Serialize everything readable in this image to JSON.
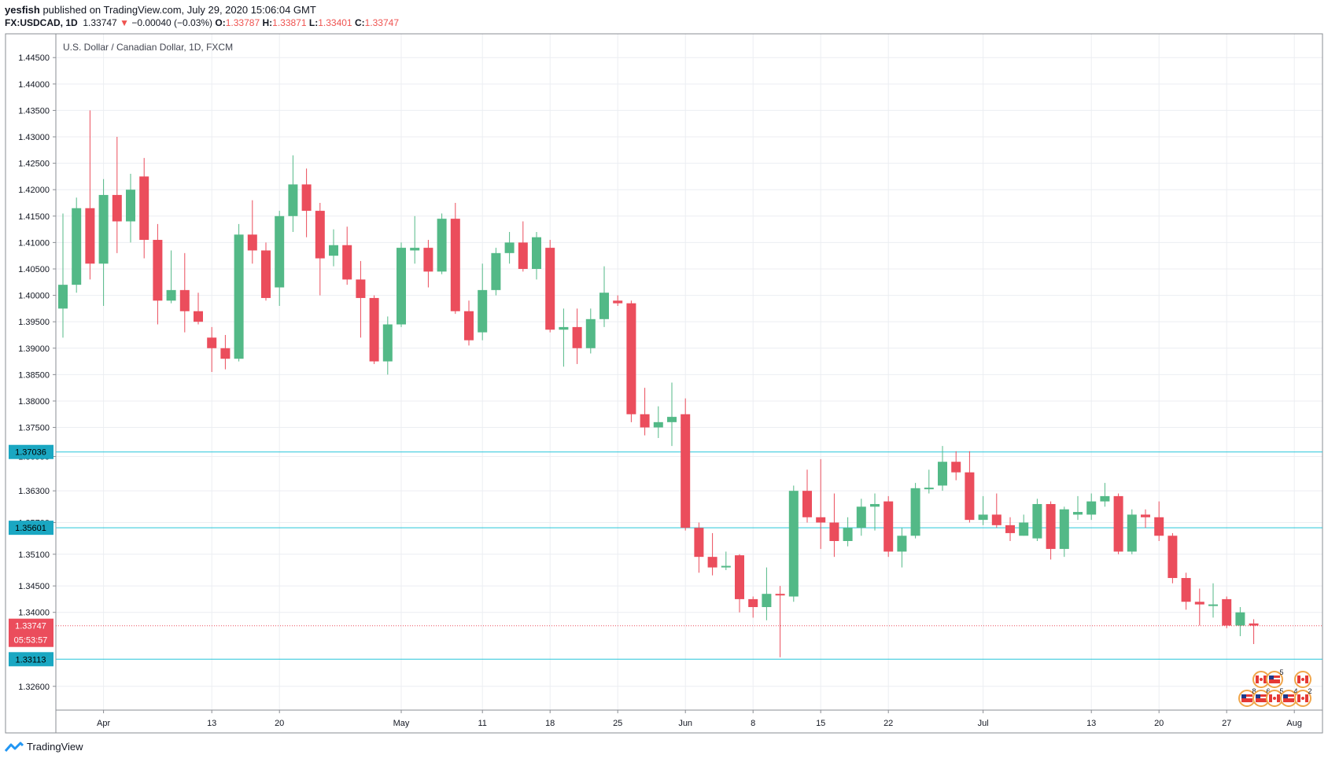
{
  "header": {
    "publisher": "yesfish",
    "published_text": "published on TradingView.com, July 29, 2020 15:06:04 GMT",
    "symbol": "FX:USDCAD, 1D",
    "last": "1.33747",
    "change": "−0.00040 (−0.03%)",
    "o_label": "O:",
    "o_val": "1.33787",
    "h_label": "H:",
    "h_val": "1.33871",
    "l_label": "L:",
    "l_val": "1.33401",
    "c_label": "C:",
    "c_val": "1.33747"
  },
  "footer": {
    "brand": "TradingView"
  },
  "colors": {
    "up": "#53b987",
    "down": "#eb4d5c",
    "level": "#26c6da",
    "grid": "#eceef2",
    "axis": "#131722"
  },
  "chart_data": {
    "type": "candlestick",
    "title": "U.S. Dollar / Canadian Dollar, 1D, FXCM",
    "ylim": [
      1.3215,
      1.4495
    ],
    "y_ticks": [
      {
        "v": 1.445,
        "label": "1.44500"
      },
      {
        "v": 1.44,
        "label": "1.44000"
      },
      {
        "v": 1.435,
        "label": "1.43500"
      },
      {
        "v": 1.43,
        "label": "1.43000"
      },
      {
        "v": 1.425,
        "label": "1.42500"
      },
      {
        "v": 1.42,
        "label": "1.42000"
      },
      {
        "v": 1.415,
        "label": "1.41500"
      },
      {
        "v": 1.41,
        "label": "1.41000"
      },
      {
        "v": 1.405,
        "label": "1.40500"
      },
      {
        "v": 1.4,
        "label": "1.40000"
      },
      {
        "v": 1.395,
        "label": "1.39500"
      },
      {
        "v": 1.39,
        "label": "1.39000"
      },
      {
        "v": 1.385,
        "label": "1.38500"
      },
      {
        "v": 1.38,
        "label": "1.38000"
      },
      {
        "v": 1.375,
        "label": "1.37500"
      },
      {
        "v": 1.3695,
        "label": "1.36950"
      },
      {
        "v": 1.363,
        "label": "1.36300"
      },
      {
        "v": 1.357,
        "label": "1.35700"
      },
      {
        "v": 1.351,
        "label": "1.35100"
      },
      {
        "v": 1.345,
        "label": "1.34500"
      },
      {
        "v": 1.34,
        "label": "1.34000"
      },
      {
        "v": 1.326,
        "label": "1.32600"
      }
    ],
    "x_ticks": [
      {
        "i": 3,
        "label": "Apr"
      },
      {
        "i": 11,
        "label": "13"
      },
      {
        "i": 16,
        "label": "20"
      },
      {
        "i": 25,
        "label": "May"
      },
      {
        "i": 31,
        "label": "11"
      },
      {
        "i": 36,
        "label": "18"
      },
      {
        "i": 41,
        "label": "25"
      },
      {
        "i": 46,
        "label": "Jun"
      },
      {
        "i": 51,
        "label": "8"
      },
      {
        "i": 56,
        "label": "15"
      },
      {
        "i": 61,
        "label": "22"
      },
      {
        "i": 68,
        "label": "Jul"
      },
      {
        "i": 76,
        "label": "13"
      },
      {
        "i": 81,
        "label": "20"
      },
      {
        "i": 86,
        "label": "27"
      },
      {
        "i": 91,
        "label": "Aug"
      }
    ],
    "levels": [
      {
        "value": 1.37036,
        "label": "1.37036"
      },
      {
        "value": 1.35601,
        "label": "1.35601"
      },
      {
        "value": 1.33113,
        "label": "1.33113"
      }
    ],
    "last_price": {
      "value": 1.33747,
      "label": "1.33747",
      "countdown": "05:53:57"
    },
    "events": {
      "row1": [
        "",
        "5",
        ""
      ],
      "row2": [
        "8",
        "6",
        "5",
        "4",
        "2"
      ]
    },
    "candles": [
      [
        1.3975,
        1.402,
        1.4155,
        1.392
      ],
      [
        1.402,
        1.4165,
        1.4185,
        1.4005
      ],
      [
        1.4165,
        1.406,
        1.435,
        1.403
      ],
      [
        1.406,
        1.419,
        1.422,
        1.398
      ],
      [
        1.419,
        1.414,
        1.43,
        1.408
      ],
      [
        1.414,
        1.42,
        1.423,
        1.41
      ],
      [
        1.4225,
        1.4105,
        1.426,
        1.407
      ],
      [
        1.4105,
        1.399,
        1.4135,
        1.3945
      ],
      [
        1.399,
        1.401,
        1.4085,
        1.3985
      ],
      [
        1.401,
        1.397,
        1.408,
        1.393
      ],
      [
        1.397,
        1.395,
        1.4005,
        1.3945
      ],
      [
        1.392,
        1.39,
        1.394,
        1.3855
      ],
      [
        1.39,
        1.388,
        1.3925,
        1.386
      ],
      [
        1.388,
        1.4115,
        1.4135,
        1.3875
      ],
      [
        1.4115,
        1.4085,
        1.418,
        1.406
      ],
      [
        1.4085,
        1.3995,
        1.41,
        1.399
      ],
      [
        1.4015,
        1.415,
        1.416,
        1.398
      ],
      [
        1.415,
        1.421,
        1.4265,
        1.412
      ],
      [
        1.421,
        1.416,
        1.424,
        1.411
      ],
      [
        1.416,
        1.407,
        1.4175,
        1.4
      ],
      [
        1.4075,
        1.4095,
        1.4125,
        1.4055
      ],
      [
        1.4095,
        1.403,
        1.413,
        1.402
      ],
      [
        1.403,
        1.3995,
        1.4065,
        1.392
      ],
      [
        1.3995,
        1.3875,
        1.4,
        1.387
      ],
      [
        1.3875,
        1.3945,
        1.396,
        1.385
      ],
      [
        1.3945,
        1.409,
        1.41,
        1.394
      ],
      [
        1.4085,
        1.409,
        1.415,
        1.406
      ],
      [
        1.409,
        1.4045,
        1.4105,
        1.4015
      ],
      [
        1.4045,
        1.4145,
        1.4155,
        1.404
      ],
      [
        1.4145,
        1.397,
        1.4175,
        1.3965
      ],
      [
        1.397,
        1.3915,
        1.399,
        1.3905
      ],
      [
        1.393,
        1.401,
        1.406,
        1.3915
      ],
      [
        1.401,
        1.408,
        1.409,
        1.4
      ],
      [
        1.408,
        1.41,
        1.412,
        1.406
      ],
      [
        1.41,
        1.405,
        1.414,
        1.4045
      ],
      [
        1.405,
        1.411,
        1.412,
        1.403
      ],
      [
        1.409,
        1.3935,
        1.4105,
        1.393
      ],
      [
        1.3935,
        1.394,
        1.3975,
        1.3865
      ],
      [
        1.394,
        1.39,
        1.3975,
        1.387
      ],
      [
        1.39,
        1.3955,
        1.3975,
        1.389
      ],
      [
        1.3955,
        1.4005,
        1.4055,
        1.394
      ],
      [
        1.399,
        1.3985,
        1.4,
        1.398
      ],
      [
        1.3985,
        1.3775,
        1.399,
        1.376
      ],
      [
        1.3775,
        1.375,
        1.3825,
        1.3735
      ],
      [
        1.375,
        1.376,
        1.379,
        1.373
      ],
      [
        1.376,
        1.377,
        1.3835,
        1.3715
      ],
      [
        1.3775,
        1.356,
        1.3805,
        1.3555
      ],
      [
        1.356,
        1.3505,
        1.357,
        1.3475
      ],
      [
        1.3505,
        1.3485,
        1.355,
        1.347
      ],
      [
        1.3485,
        1.3488,
        1.3515,
        1.348
      ],
      [
        1.3508,
        1.3425,
        1.351,
        1.34
      ],
      [
        1.3425,
        1.341,
        1.343,
        1.339
      ],
      [
        1.341,
        1.3435,
        1.3485,
        1.3385
      ],
      [
        1.3435,
        1.3433,
        1.345,
        1.3315
      ],
      [
        1.343,
        1.363,
        1.364,
        1.342
      ],
      [
        1.363,
        1.358,
        1.367,
        1.357
      ],
      [
        1.358,
        1.357,
        1.369,
        1.352
      ],
      [
        1.357,
        1.3535,
        1.3625,
        1.3505
      ],
      [
        1.3535,
        1.356,
        1.358,
        1.3525
      ],
      [
        1.356,
        1.36,
        1.3615,
        1.3545
      ],
      [
        1.36,
        1.3605,
        1.3625,
        1.3555
      ],
      [
        1.361,
        1.3515,
        1.362,
        1.3505
      ],
      [
        1.3515,
        1.3545,
        1.356,
        1.3485
      ],
      [
        1.3545,
        1.3635,
        1.3645,
        1.354
      ],
      [
        1.3635,
        1.3636,
        1.367,
        1.3625
      ],
      [
        1.364,
        1.3685,
        1.3715,
        1.363
      ],
      [
        1.3685,
        1.3665,
        1.3705,
        1.365
      ],
      [
        1.3665,
        1.3575,
        1.3705,
        1.357
      ],
      [
        1.3575,
        1.3585,
        1.362,
        1.3565
      ],
      [
        1.3585,
        1.3565,
        1.3625,
        1.356
      ],
      [
        1.3565,
        1.355,
        1.358,
        1.3535
      ],
      [
        1.3545,
        1.357,
        1.3585,
        1.3545
      ],
      [
        1.354,
        1.3605,
        1.3615,
        1.3535
      ],
      [
        1.3605,
        1.352,
        1.361,
        1.35
      ],
      [
        1.352,
        1.3595,
        1.36,
        1.3505
      ],
      [
        1.3585,
        1.359,
        1.362,
        1.3575
      ],
      [
        1.3585,
        1.361,
        1.3625,
        1.3575
      ],
      [
        1.361,
        1.362,
        1.3645,
        1.36
      ],
      [
        1.362,
        1.3515,
        1.3625,
        1.351
      ],
      [
        1.3515,
        1.3585,
        1.3595,
        1.351
      ],
      [
        1.3585,
        1.358,
        1.3595,
        1.356
      ],
      [
        1.358,
        1.3545,
        1.361,
        1.3535
      ],
      [
        1.3545,
        1.3465,
        1.355,
        1.3455
      ],
      [
        1.3465,
        1.342,
        1.3475,
        1.3405
      ],
      [
        1.342,
        1.3415,
        1.3445,
        1.3375
      ],
      [
        1.3415,
        1.3415,
        1.3455,
        1.339
      ],
      [
        1.3425,
        1.3375,
        1.343,
        1.337
      ],
      [
        1.3375,
        1.34,
        1.341,
        1.3355
      ],
      [
        1.3379,
        1.3375,
        1.3387,
        1.334
      ]
    ]
  }
}
